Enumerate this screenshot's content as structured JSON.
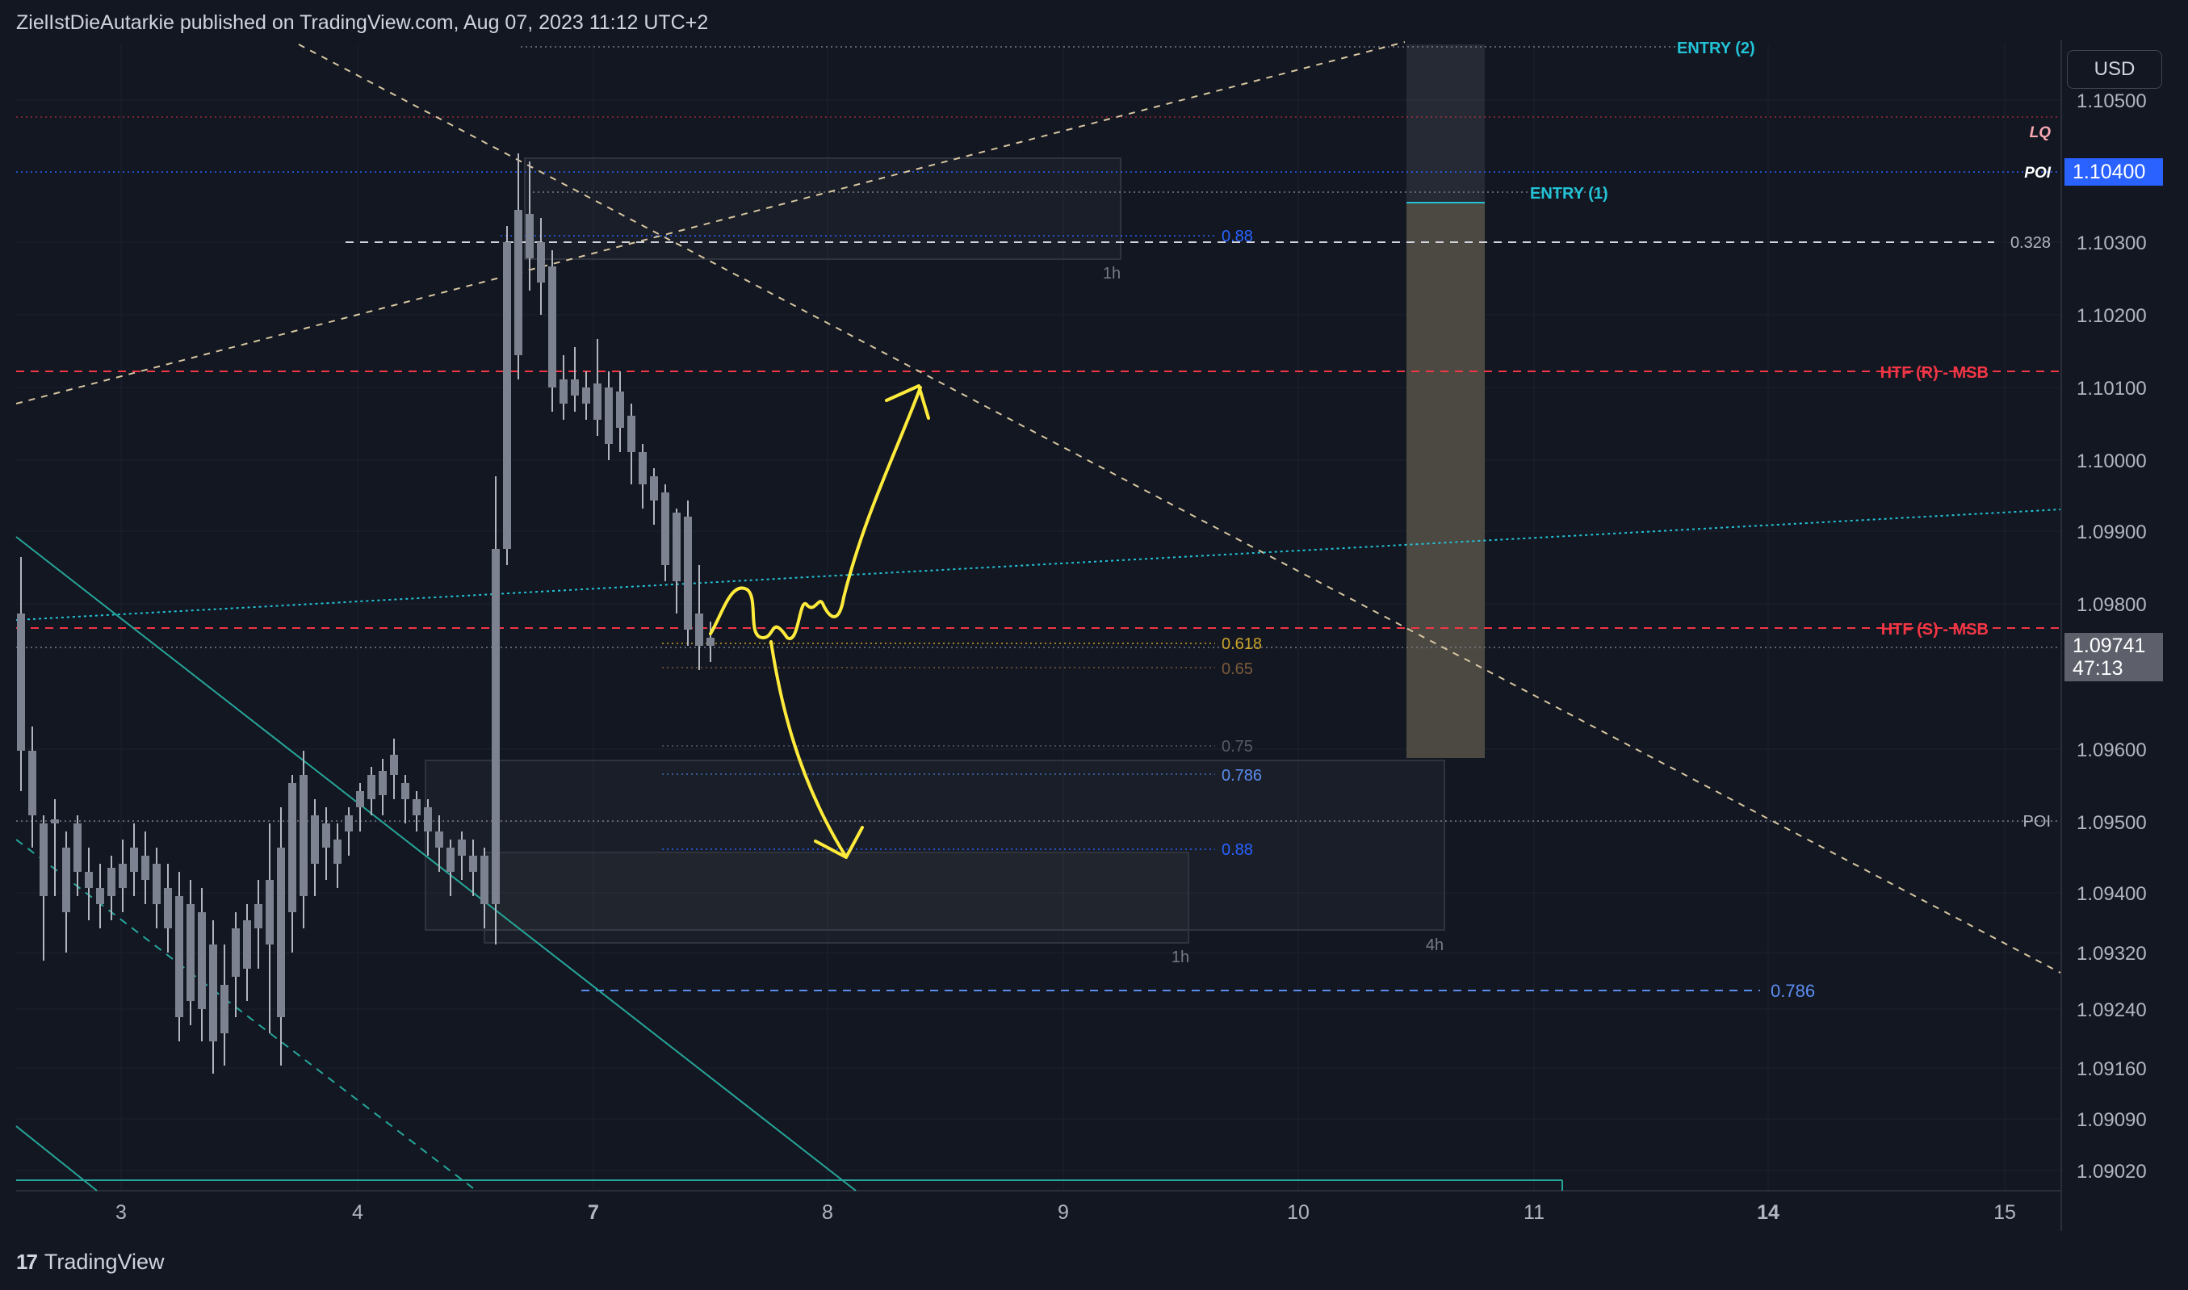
{
  "header": {
    "publisher_line": "ZielIstDieAutarkie published on TradingView.com, Aug 07, 2023 11:12 UTC+2"
  },
  "currency_button": {
    "label": "USD"
  },
  "price_axis": {
    "ticks": [
      "1.10500",
      "1.10300",
      "1.10200",
      "1.10100",
      "1.10000",
      "1.09900",
      "1.09800",
      "1.09600",
      "1.09500",
      "1.09400",
      "1.09320",
      "1.09240",
      "1.09160",
      "1.09090",
      "1.09020"
    ],
    "poi_price": "1.10400",
    "current_price": "1.09741",
    "countdown": "47:13"
  },
  "time_axis": {
    "ticks": [
      "3",
      "4",
      "7",
      "8",
      "9",
      "10",
      "11",
      "14",
      "15"
    ]
  },
  "annotations": {
    "entry_2": "ENTRY (2)",
    "entry_1": "ENTRY (1)",
    "lq": "LQ",
    "poi_top": "POI",
    "fib_0328": "0.328",
    "htf_r": "HTF (R) - MSB",
    "htf_s": "HTF (S) - MSB",
    "poi_bottom": "POI",
    "fib_088_top": "0.88",
    "fib_0618": "0.618",
    "fib_065": "0.65",
    "fib_075": "0.75",
    "fib_0786": "0.786",
    "fib_088_bottom": "0.88",
    "fib_0786_lower": "0.786",
    "tf_1h_top": "1h",
    "tf_1h_bottom": "1h",
    "tf_4h": "4h"
  },
  "footer": {
    "brand": "TradingView",
    "logo_glyph": "17"
  },
  "colors": {
    "background": "#131722",
    "red_level": "#f23645",
    "poi_blue": "#2962ff",
    "cyan": "#22c3d6",
    "teal_channel": "#26a69a",
    "yellow_arrow": "#ffeb3b",
    "fib_gold": "#c9a227"
  }
}
